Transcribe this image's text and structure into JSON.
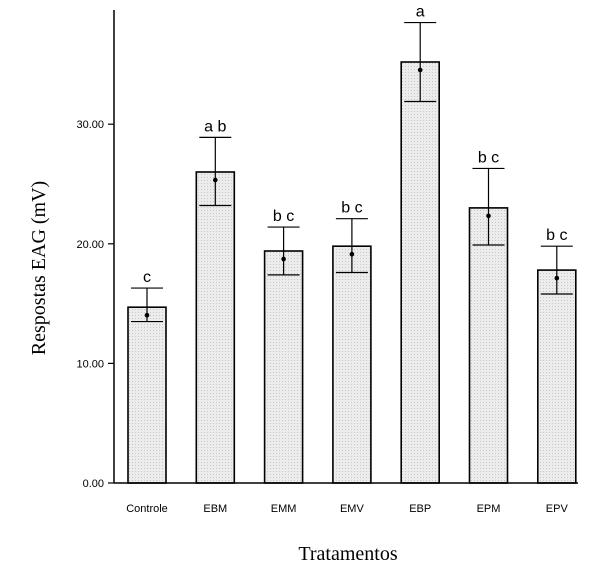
{
  "chart_data": {
    "type": "bar",
    "title": "",
    "xlabel": "Tratamentos",
    "ylabel": "Respostas EAG (mV)",
    "ylim": [
      0,
      39
    ],
    "yticks": [
      "0.00",
      "10.00",
      "20.00",
      "30.00"
    ],
    "ytick_values": [
      0,
      10,
      20,
      30
    ],
    "categories": [
      "Controle",
      "EBM",
      "EMM",
      "EMV",
      "EBP",
      "EPM",
      "EPV"
    ],
    "values": [
      14.7,
      26.0,
      19.4,
      19.8,
      35.2,
      23.0,
      17.8
    ],
    "error_low": [
      13.5,
      23.2,
      17.4,
      17.6,
      31.9,
      19.9,
      15.8
    ],
    "error_high": [
      16.3,
      28.9,
      21.4,
      22.1,
      38.5,
      26.3,
      19.8
    ],
    "significance": [
      "c",
      "a b",
      "b c",
      "b c",
      "a",
      "b c",
      "b c"
    ],
    "bar_fill": "#ececec",
    "grid": false,
    "legend": "none"
  }
}
